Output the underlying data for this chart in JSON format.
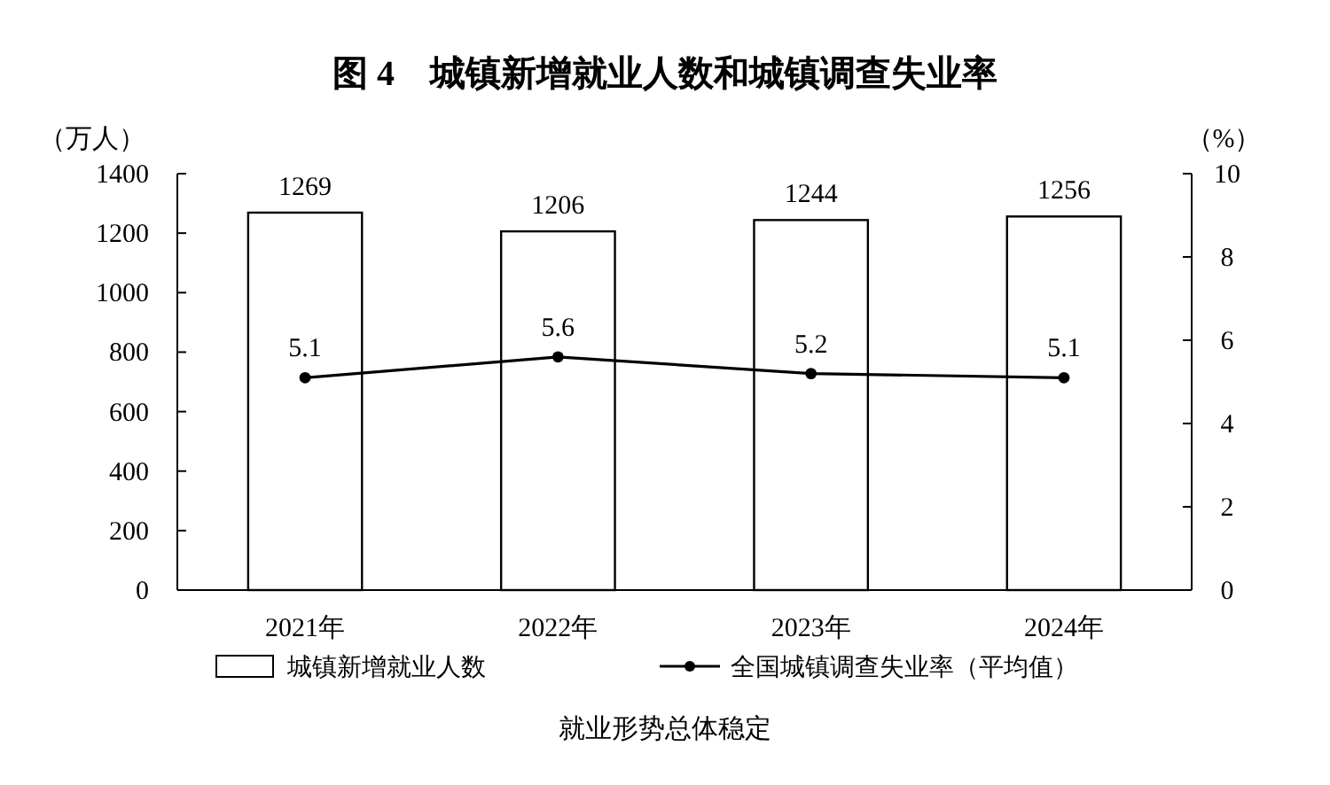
{
  "chart_data": {
    "type": "bar",
    "title": "图 4　城镇新增就业人数和城镇调查失业率",
    "ylabel": "（万人）",
    "y2label": "（%）",
    "categories": [
      "2021年",
      "2022年",
      "2023年",
      "2024年"
    ],
    "series": [
      {
        "name": "城镇新增就业人数",
        "color": "#ffffff",
        "values": [
          1269,
          1206,
          1244,
          1256
        ]
      },
      {
        "name": "全国城镇调查失业率（平均值）",
        "type": "line",
        "axis": "y2",
        "color": "#000000",
        "marker": "circle",
        "values": [
          5.1,
          5.6,
          5.2,
          5.1
        ]
      }
    ],
    "ylim": [
      0,
      1400
    ],
    "yticks": [
      0,
      200,
      400,
      600,
      800,
      1000,
      1200,
      1400
    ],
    "y2lim": [
      0,
      10
    ],
    "y2ticks": [
      0,
      2,
      4,
      6,
      8,
      10
    ],
    "data_labels": true,
    "legend": "bottom",
    "grid": false,
    "annotations": [
      "就业形势总体稳定"
    ]
  }
}
